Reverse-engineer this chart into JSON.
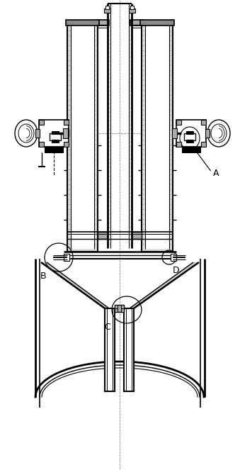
{
  "bg_color": "#ffffff",
  "line_color": "#000000",
  "gray_fill": "#aaaaaa",
  "light_gray": "#cccccc",
  "label_A": "A",
  "label_B": "B",
  "label_C": "C",
  "label_D": "D",
  "fig_width": 3.39,
  "fig_height": 6.63,
  "dpi": 100
}
